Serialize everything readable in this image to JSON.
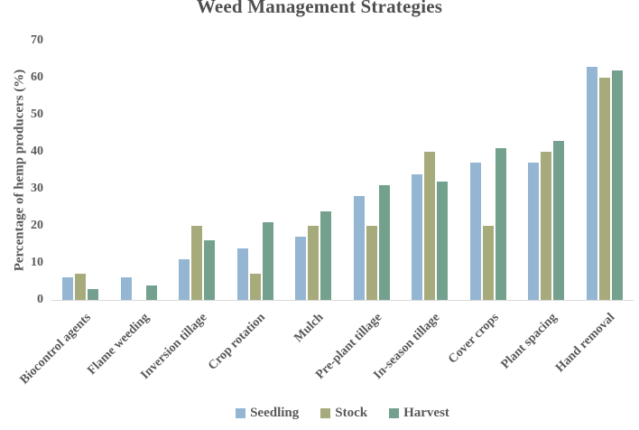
{
  "chart_data": {
    "type": "bar",
    "title": "Weed Management Strategies",
    "xlabel": "",
    "ylabel": "Percentage of hemp producers (%)",
    "ylim": [
      0,
      70
    ],
    "yticks": [
      0,
      10,
      20,
      30,
      40,
      50,
      60,
      70
    ],
    "grid": false,
    "legend_position": "bottom",
    "categories": [
      "Biocontrol agents",
      "Flame weeding",
      "Inversion tillage",
      "Crop rotation",
      "Mulch",
      "Pre-plant tillage",
      "In-season tillage",
      "Cover crops",
      "Plant spacing",
      "Hand removal"
    ],
    "series": [
      {
        "name": "Seedling",
        "color": "#94b6d3",
        "values": [
          6,
          6,
          11,
          14,
          17,
          28,
          34,
          37,
          37,
          63
        ]
      },
      {
        "name": "Stock",
        "color": "#a7ab7b",
        "values": [
          7,
          0,
          20,
          7,
          20,
          20,
          40,
          20,
          40,
          60
        ]
      },
      {
        "name": "Harvest",
        "color": "#74a18d",
        "values": [
          3,
          4,
          16,
          21,
          24,
          31,
          32,
          41,
          43,
          62
        ]
      }
    ],
    "colors": {
      "text": "#595959",
      "axis_line": "#d9d9d9",
      "background": "#ffffff"
    }
  }
}
